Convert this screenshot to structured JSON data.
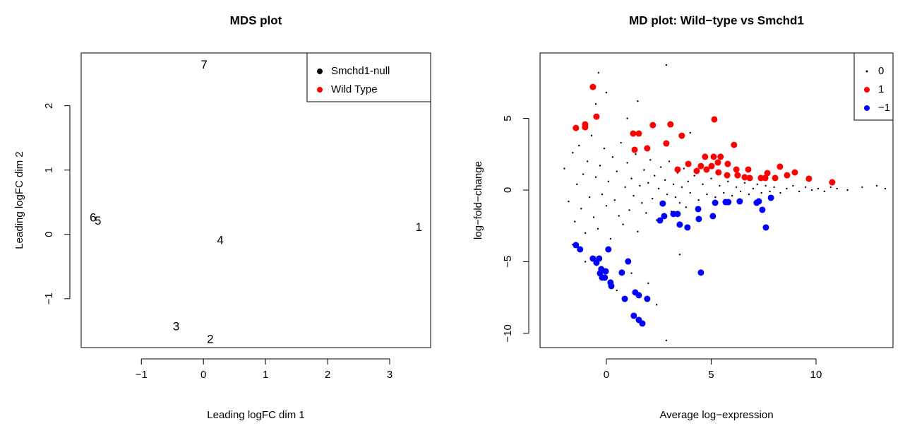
{
  "chart_data": [
    {
      "type": "scatter",
      "title": "MDS plot",
      "x_label": "Leading logFC dim 1",
      "y_label": "Leading logFC dim 2",
      "xlim": [
        -1.97,
        3.66
      ],
      "ylim": [
        -1.76,
        2.82
      ],
      "xticks": [
        {
          "value": -1,
          "label": "−1"
        },
        0,
        1,
        2,
        3
      ],
      "yticks": [
        {
          "value": -1,
          "label": "−1"
        },
        0,
        1,
        2
      ],
      "legend": "topright",
      "series": [
        {
          "name": "Smchd1-null",
          "color": "#000000",
          "labels": [
            "1",
            "2",
            "3",
            "4"
          ],
          "x": [
            3.47,
            0.11,
            -0.44,
            0.27
          ],
          "values": [
            0.1,
            -1.64,
            -1.44,
            -0.1
          ]
        },
        {
          "name": "Wild Type",
          "color": "#ff0000",
          "labels": [
            "5",
            "6",
            "7"
          ],
          "x": [
            -1.7,
            -1.78,
            0.01
          ],
          "values": [
            0.2,
            0.25,
            2.63
          ]
        }
      ]
    },
    {
      "type": "scatter",
      "title": "MD plot: Wild−type vs Smchd1",
      "x_label": "Average log−expression",
      "y_label": "log−fold−change",
      "xlim": [
        -3.16,
        13.67
      ],
      "ylim": [
        -10.99,
        9.56
      ],
      "xticks": [
        0,
        5,
        10
      ],
      "yticks": [
        {
          "value": -10,
          "label": "−10"
        },
        {
          "value": -5,
          "label": "−5"
        },
        0,
        5
      ],
      "legend": "topright",
      "series": [
        {
          "name": "0",
          "color": "#000000",
          "size": "small",
          "x": [
            -2.0,
            -1.8,
            -1.6,
            -1.5,
            -1.4,
            -1.3,
            -1.2,
            -1.1,
            -1.0,
            -0.9,
            -0.8,
            -0.7,
            -0.6,
            -0.5,
            -0.4,
            -0.3,
            -0.2,
            -0.1,
            0.0,
            0.1,
            0.2,
            0.3,
            0.4,
            0.5,
            0.6,
            0.7,
            0.8,
            0.9,
            1.0,
            1.1,
            1.2,
            1.3,
            1.4,
            1.5,
            1.6,
            1.7,
            1.8,
            1.9,
            2.0,
            2.1,
            2.2,
            2.3,
            2.4,
            2.5,
            2.6,
            2.7,
            2.8,
            2.9,
            3.0,
            3.1,
            3.2,
            3.3,
            3.4,
            3.5,
            3.6,
            3.7,
            3.8,
            3.9,
            4.0,
            4.2,
            4.4,
            4.6,
            4.8,
            5.0,
            5.2,
            5.4,
            5.6,
            5.8,
            6.0,
            6.2,
            6.4,
            6.6,
            6.8,
            7.0,
            7.2,
            7.4,
            7.6,
            7.8,
            8.0,
            8.3,
            8.6,
            8.9,
            9.2,
            9.5,
            9.8,
            10.1,
            10.4,
            10.7,
            11.0,
            11.5,
            12.2,
            12.9,
            13.3,
            -0.37,
            2.86,
            2.86,
            0.5,
            -0.5,
            1.0,
            -1.0,
            2.0,
            3.5,
            4.0,
            1.5,
            0.0,
            -1.6,
            2.4,
            1.2
          ],
          "values": [
            1.5,
            -0.8,
            2.6,
            -2.2,
            0.4,
            3.1,
            -1.3,
            1.1,
            -3.0,
            2.0,
            -0.5,
            3.8,
            -1.9,
            0.9,
            -2.7,
            1.7,
            -0.3,
            2.9,
            -1.1,
            0.6,
            -3.4,
            2.3,
            -0.7,
            1.3,
            -1.8,
            3.3,
            -2.4,
            0.2,
            1.9,
            -1.4,
            0.8,
            -0.4,
            2.5,
            -2.9,
            0.3,
            -0.9,
            1.4,
            -1.6,
            0.5,
            2.1,
            -0.6,
            1.0,
            -2.1,
            0.1,
            1.6,
            -1.0,
            0.7,
            -0.3,
            2.0,
            -1.5,
            0.4,
            -0.5,
            1.2,
            -0.9,
            0.2,
            1.5,
            -1.2,
            0.6,
            -0.2,
            1.0,
            -0.7,
            0.4,
            -0.3,
            0.8,
            -0.5,
            0.3,
            -0.2,
            0.6,
            -0.4,
            0.2,
            -0.1,
            0.5,
            -0.3,
            0.1,
            0.4,
            -0.2,
            0.3,
            -0.1,
            0.2,
            -0.2,
            0.1,
            0.3,
            -0.1,
            0.2,
            0.0,
            0.1,
            -0.1,
            0.2,
            0.1,
            0.0,
            0.2,
            0.3,
            0.1,
            8.18,
            8.72,
            -10.49,
            -7.0,
            6.0,
            5.0,
            -5.0,
            -6.5,
            -4.5,
            4.0,
            6.2,
            6.8,
            -3.8,
            -8.0,
            -5.8
          ]
        },
        {
          "name": "1",
          "color": "#ff0000",
          "size": "large",
          "x": [
            -0.64,
            -1.45,
            -0.47,
            -1.01,
            -1.01,
            1.28,
            1.55,
            2.22,
            3.06,
            3.6,
            5.15,
            1.95,
            1.35,
            2.86,
            6.09,
            3.91,
            4.71,
            4.51,
            5.12,
            5.45,
            5.32,
            5.02,
            5.79,
            6.2,
            3.4,
            4.31,
            4.78,
            5.35,
            6.77,
            5.76,
            7.68,
            8.28,
            8.05,
            8.99,
            9.66,
            10.77,
            6.6,
            7.37,
            6.26,
            6.84,
            7.58,
            8.62
          ],
          "values": [
            7.19,
            4.33,
            5.12,
            4.58,
            4.38,
            3.94,
            3.94,
            4.53,
            4.58,
            3.79,
            4.93,
            2.91,
            2.81,
            3.25,
            3.15,
            1.82,
            2.32,
            1.67,
            2.32,
            2.32,
            1.92,
            1.67,
            1.82,
            1.43,
            1.43,
            1.33,
            1.43,
            1.23,
            1.43,
            1.03,
            1.18,
            1.63,
            0.84,
            1.23,
            0.79,
            0.54,
            0.89,
            0.84,
            1.03,
            0.84,
            0.84,
            1.03
          ]
        },
        {
          "name": "−1",
          "color": "#0000ff",
          "size": "large",
          "x": [
            -1.45,
            -1.25,
            -0.64,
            -0.34,
            0.1,
            -0.47,
            -0.24,
            -0.03,
            -0.3,
            -0.07,
            0.2,
            0.24,
            -0.2,
            0.74,
            1.04,
            0.88,
            1.38,
            1.55,
            1.95,
            1.31,
            1.55,
            1.72,
            2.56,
            2.76,
            3.5,
            3.4,
            3.87,
            4.41,
            4.51,
            5.08,
            5.82,
            5.69,
            6.36,
            7.17,
            7.27,
            7.44,
            7.85,
            7.61,
            5.19,
            2.69,
            3.2,
            4.38
          ],
          "values": [
            -3.84,
            -4.14,
            -4.78,
            -4.78,
            -4.14,
            -5.07,
            -5.52,
            -5.67,
            -5.81,
            -6.11,
            -6.45,
            -6.7,
            -6.11,
            -5.76,
            -4.98,
            -7.59,
            -7.14,
            -7.34,
            -7.59,
            -8.77,
            -9.06,
            -9.31,
            -2.12,
            -1.82,
            -2.41,
            -1.67,
            -2.61,
            -2.02,
            -5.76,
            -1.82,
            -0.84,
            -0.84,
            -0.79,
            -0.89,
            -0.79,
            -1.38,
            -0.54,
            -2.61,
            -0.89,
            -0.94,
            -1.67,
            -1.33
          ]
        }
      ]
    }
  ]
}
